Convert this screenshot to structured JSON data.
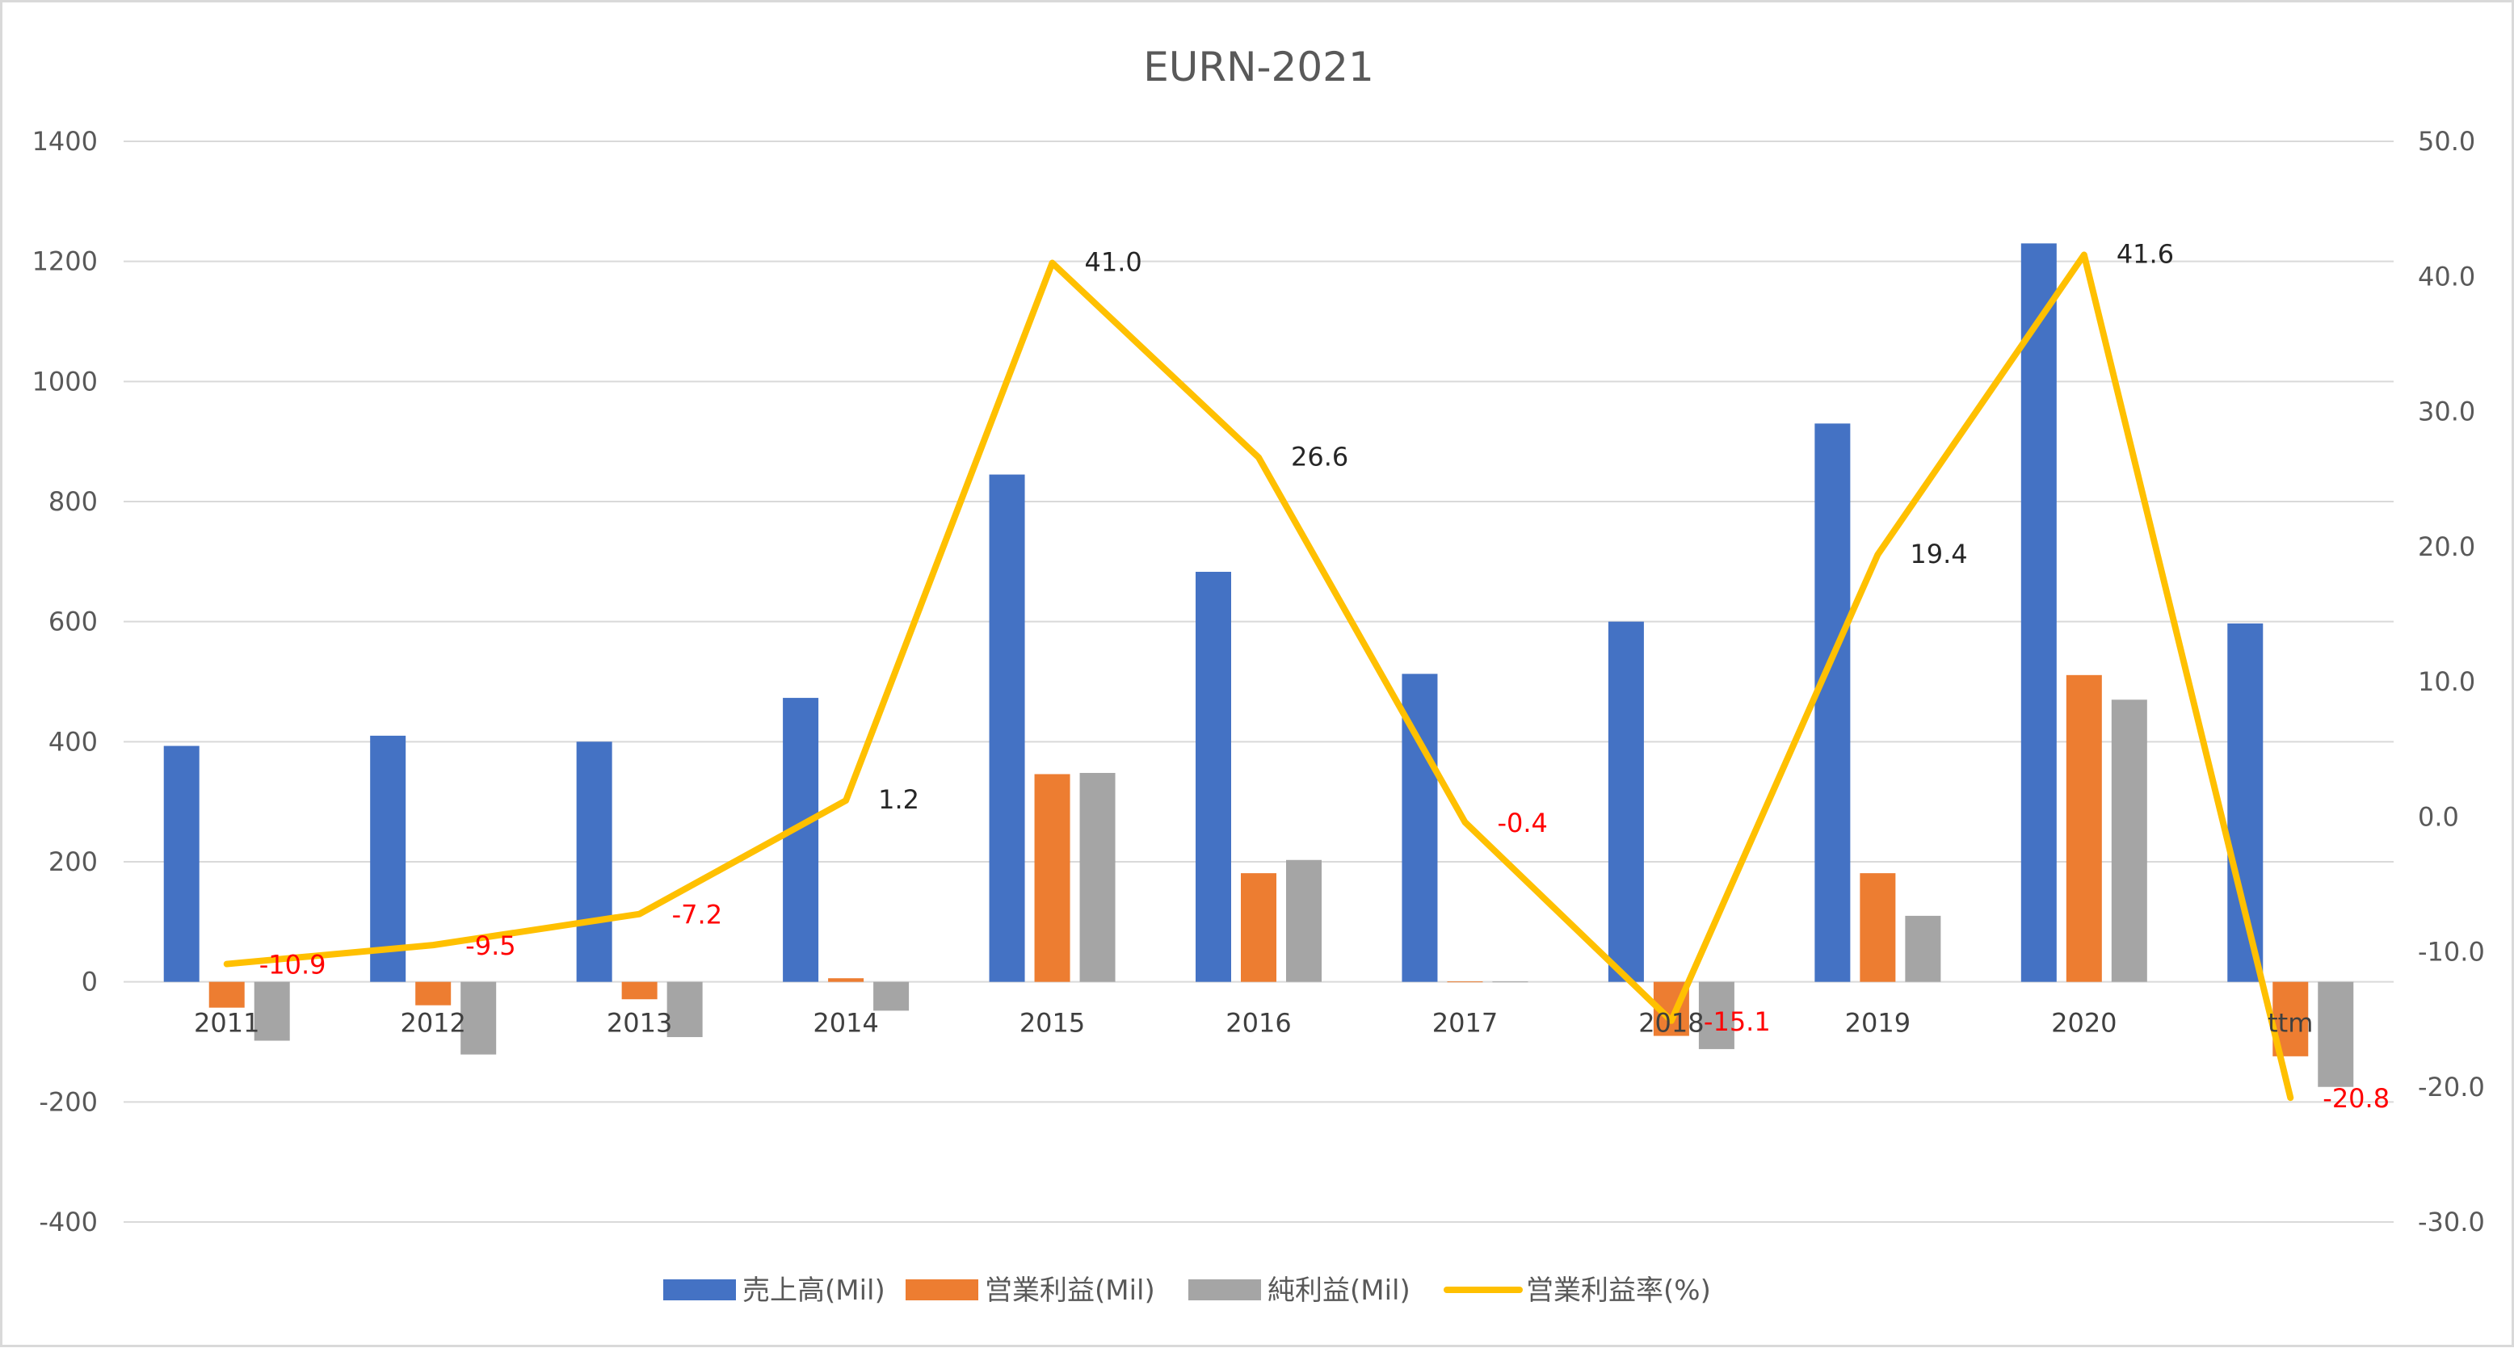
{
  "chart_data": {
    "type": "bar",
    "title": "EURN-2021",
    "categories": [
      "2011",
      "2012",
      "2013",
      "2014",
      "2015",
      "2016",
      "2017",
      "2018",
      "2019",
      "2020",
      "ttm"
    ],
    "series": [
      {
        "name": "売上高(Mil)",
        "type": "bar",
        "axis": "left",
        "color": "#4472C4",
        "values": [
          393,
          410,
          400,
          473,
          845,
          683,
          513,
          600,
          930,
          1230,
          597
        ]
      },
      {
        "name": "営業利益(Mil)",
        "type": "bar",
        "axis": "left",
        "color": "#ED7D31",
        "values": [
          -43,
          -39,
          -29,
          6,
          346,
          181,
          0,
          -90,
          181,
          511,
          -124
        ]
      },
      {
        "name": "純利益(Mil)",
        "type": "bar",
        "axis": "left",
        "color": "#A5A5A5",
        "values": [
          -98,
          -121,
          -92,
          -48,
          348,
          203,
          0,
          -112,
          110,
          470,
          -175
        ]
      },
      {
        "name": "営業利益率(%)",
        "type": "line",
        "axis": "right",
        "color": "#FFC000",
        "values": [
          -10.9,
          -9.5,
          -7.2,
          1.2,
          41.0,
          26.6,
          -0.4,
          -15.1,
          19.4,
          41.6,
          -20.8
        ],
        "labels": [
          "-10.9",
          "-9.5",
          "-7.2",
          "1.2",
          "41.0",
          "26.6",
          "-0.4",
          "-15.1",
          "19.4",
          "41.6",
          "-20.8"
        ]
      }
    ],
    "y_left": {
      "min": -400,
      "max": 1400,
      "step": 200,
      "ticks": [
        "-400",
        "-200",
        "0",
        "200",
        "400",
        "600",
        "800",
        "1000",
        "1200",
        "1400"
      ]
    },
    "y_right": {
      "min": -30,
      "max": 50,
      "step": 10,
      "ticks": [
        "-30.0",
        "-20.0",
        "-10.0",
        "0.0",
        "10.0",
        "20.0",
        "30.0",
        "40.0",
        "50.0"
      ]
    },
    "negative_label_color": "#FF0000",
    "positive_label_color": "#262626",
    "grid": true,
    "legend_position": "bottom"
  }
}
